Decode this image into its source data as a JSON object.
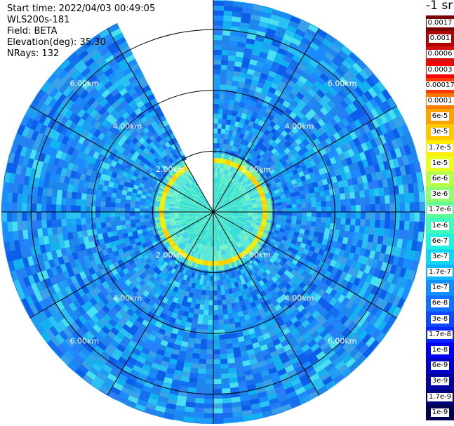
{
  "info": {
    "start_time": "Start time: 2022/04/03 00:49:05",
    "instrument": "WLS200s-181",
    "field": "Field: BETA",
    "elevation": "Elevation(deg): 35.30",
    "nrays": "NRays: 132"
  },
  "range_labels": [
    "2.00km",
    "4.00km",
    "6.00km"
  ],
  "legend": {
    "title": "-1 sr",
    "levels": [
      {
        "label": "0.0017",
        "color": "#7a0000"
      },
      {
        "label": "0.001",
        "color": "#b00000"
      },
      {
        "label": "0.0006",
        "color": "#d41010"
      },
      {
        "label": "0.0003",
        "color": "#ff0000"
      },
      {
        "label": "0.00017",
        "color": "#ff3a00"
      },
      {
        "label": "0.0001",
        "color": "#ff7a00"
      },
      {
        "label": "6e-5",
        "color": "#ffa200"
      },
      {
        "label": "3e-5",
        "color": "#ffc800"
      },
      {
        "label": "1.7e-5",
        "color": "#ffee00"
      },
      {
        "label": "1e-5",
        "color": "#e8ff20"
      },
      {
        "label": "6e-6",
        "color": "#b8ff48"
      },
      {
        "label": "3e-6",
        "color": "#8eff70"
      },
      {
        "label": "1.7e-6",
        "color": "#62ff96"
      },
      {
        "label": "1e-6",
        "color": "#3cffbe"
      },
      {
        "label": "6e-7",
        "color": "#24f0e0"
      },
      {
        "label": "3e-7",
        "color": "#12d6f2"
      },
      {
        "label": "1.7e-7",
        "color": "#10b6ff"
      },
      {
        "label": "1e-7",
        "color": "#1090ff"
      },
      {
        "label": "6e-8",
        "color": "#1070ff"
      },
      {
        "label": "3e-8",
        "color": "#1048ff"
      },
      {
        "label": "1.7e-8",
        "color": "#0a24ff"
      },
      {
        "label": "1e-8",
        "color": "#0000f0"
      },
      {
        "label": "6e-9",
        "color": "#0000c8"
      },
      {
        "label": "3e-9",
        "color": "#0000a0"
      },
      {
        "label": "1.7e-9",
        "color": "#000078"
      },
      {
        "label": "1e-9",
        "color": "#000050"
      }
    ]
  }
}
